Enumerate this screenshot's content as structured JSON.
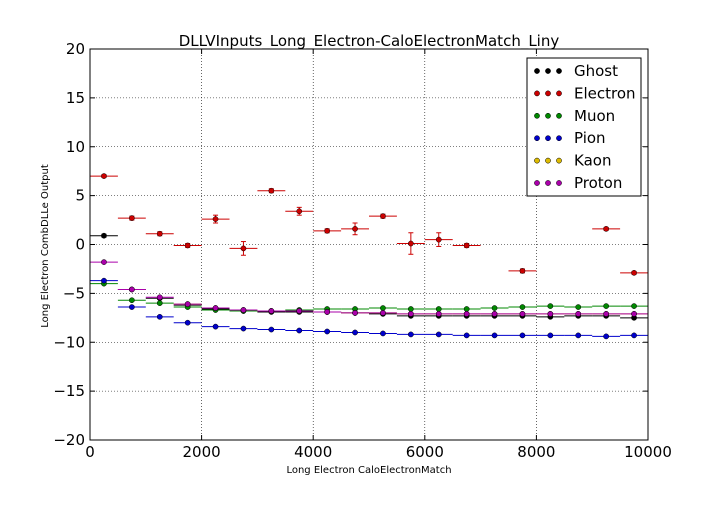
{
  "chart_data": {
    "type": "scatter",
    "title": "DLLVInputs_Long_Electron-CaloElectronMatch_Liny",
    "xlabel": "Long Electron CaloElectronMatch",
    "ylabel": "Long Electron CombDLLe Output",
    "xlim": [
      0,
      10000
    ],
    "ylim": [
      -20,
      20
    ],
    "x_ticks": [
      0,
      2000,
      4000,
      6000,
      8000,
      10000
    ],
    "y_ticks": [
      -20,
      -15,
      -10,
      -5,
      0,
      5,
      10,
      15,
      20
    ],
    "grid": true,
    "legend_position": "top-right",
    "bin_halfwidth": 250,
    "x": [
      250,
      750,
      1250,
      1750,
      2250,
      2750,
      3250,
      3750,
      4250,
      4750,
      5250,
      5750,
      6250,
      6750,
      7250,
      7750,
      8250,
      8750,
      9250,
      9750
    ],
    "series": [
      {
        "name": "Ghost",
        "color": "#000000",
        "values": [
          0.9,
          -4.6,
          -5.5,
          -6.2,
          -6.6,
          -6.8,
          -6.9,
          -6.9,
          -6.9,
          -7.0,
          -7.1,
          -7.3,
          -7.3,
          -7.3,
          -7.3,
          -7.3,
          -7.4,
          -7.3,
          -7.3,
          -7.5
        ],
        "errors": [
          0.15,
          0.12,
          0.1,
          0.1,
          0.1,
          0.1,
          0.1,
          0.1,
          0.1,
          0.1,
          0.1,
          0.1,
          0.1,
          0.1,
          0.1,
          0.1,
          0.1,
          0.1,
          0.1,
          0.1
        ]
      },
      {
        "name": "Electron",
        "color": "#cc0000",
        "values": [
          7.0,
          2.7,
          1.1,
          -0.1,
          2.6,
          -0.4,
          5.5,
          3.4,
          1.4,
          1.6,
          2.9,
          0.1,
          0.5,
          -0.1,
          null,
          -2.7,
          null,
          null,
          1.6,
          -2.9
        ],
        "errors": [
          0.15,
          0.2,
          0.2,
          0.2,
          0.4,
          0.7,
          0.2,
          0.4,
          0.2,
          0.6,
          0.2,
          1.1,
          0.7,
          0.2,
          0,
          0.2,
          0,
          0,
          0.15,
          0.15
        ]
      },
      {
        "name": "Muon",
        "color": "#008800",
        "values": [
          -4.0,
          -5.7,
          -6.0,
          -6.4,
          -6.7,
          -6.8,
          -6.8,
          -6.7,
          -6.6,
          -6.6,
          -6.5,
          -6.6,
          -6.6,
          -6.6,
          -6.5,
          -6.4,
          -6.3,
          -6.4,
          -6.3,
          -6.3
        ],
        "errors": [
          0.1,
          0.1,
          0.1,
          0.1,
          0.1,
          0.1,
          0.1,
          0.1,
          0.1,
          0.1,
          0.1,
          0.1,
          0.1,
          0.1,
          0.1,
          0.1,
          0.1,
          0.1,
          0.1,
          0.1
        ]
      },
      {
        "name": "Pion",
        "color": "#0000cc",
        "values": [
          -3.7,
          -6.4,
          -7.4,
          -8.0,
          -8.4,
          -8.6,
          -8.7,
          -8.8,
          -8.9,
          -9.0,
          -9.1,
          -9.2,
          -9.2,
          -9.3,
          -9.3,
          -9.3,
          -9.3,
          -9.3,
          -9.4,
          -9.3
        ],
        "errors": [
          0.1,
          0.1,
          0.1,
          0.1,
          0.1,
          0.1,
          0.1,
          0.1,
          0.1,
          0.1,
          0.1,
          0.1,
          0.1,
          0.1,
          0.1,
          0.1,
          0.1,
          0.1,
          0.1,
          0.1
        ]
      },
      {
        "name": "Kaon",
        "color": "#ddbb00",
        "values": [
          null,
          null,
          null,
          -6.1,
          -6.5,
          -6.7,
          -6.8,
          -6.8,
          -6.9,
          -7.0,
          -7.0,
          -7.1,
          -7.1,
          -7.1,
          -7.1,
          -7.1,
          -7.1,
          -7.1,
          -7.1,
          -7.1
        ],
        "errors": [
          0,
          0,
          0,
          0.1,
          0.1,
          0.1,
          0.1,
          0.1,
          0.1,
          0.1,
          0.1,
          0.1,
          0.1,
          0.1,
          0.1,
          0.1,
          0.1,
          0.1,
          0.1,
          0.1
        ]
      },
      {
        "name": "Proton",
        "color": "#aa00aa",
        "values": [
          -1.8,
          -4.6,
          -5.4,
          -6.1,
          -6.5,
          -6.7,
          -6.8,
          -6.8,
          -6.9,
          -7.0,
          -7.0,
          -7.1,
          -7.1,
          -7.1,
          -7.1,
          -7.1,
          -7.1,
          -7.1,
          -7.1,
          -7.1
        ],
        "errors": [
          0.1,
          0.1,
          0.1,
          0.1,
          0.1,
          0.1,
          0.1,
          0.1,
          0.1,
          0.1,
          0.1,
          0.1,
          0.1,
          0.1,
          0.1,
          0.1,
          0.1,
          0.1,
          0.1,
          0.1
        ]
      }
    ]
  }
}
